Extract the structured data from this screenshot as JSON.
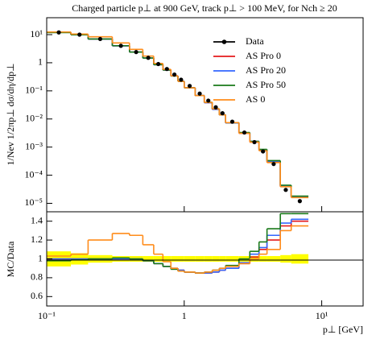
{
  "chart_data": {
    "type": "histogram",
    "title": "Charged particle p⊥ at 900 GeV, track p⊥ > 100 MeV, for Nch ≥ 20",
    "y_label": "1/Nev 1/2πp⊥ dσ/dη/dp⊥",
    "x_label": "p⊥ [GeV]",
    "ratio_label": "MC/Data",
    "xlog": true,
    "ylog": true,
    "xlim": [
      0.1,
      20
    ],
    "xticks": [
      {
        "value": 0.1,
        "label": "10⁻¹"
      },
      1,
      {
        "value": 10,
        "label": "10¹"
      }
    ],
    "ylim": [
      5e-06,
      40
    ],
    "yticks": [
      {
        "value": 10,
        "label": "10¹"
      },
      1,
      {
        "value": 0.1,
        "label": "10⁻¹"
      },
      {
        "value": 0.01,
        "label": "10⁻²"
      },
      {
        "value": 0.001,
        "label": "10⁻³"
      },
      {
        "value": 0.0001,
        "label": "10⁻⁴"
      },
      {
        "value": 1e-05,
        "label": "10⁻⁵"
      }
    ],
    "ratio_ylim": [
      0.5,
      1.5
    ],
    "ratio_yticks": [
      0.6,
      0.8,
      1,
      1.2,
      1.4
    ],
    "legend": "top-right",
    "bins": [
      0.1,
      0.15,
      0.2,
      0.3,
      0.4,
      0.5,
      0.6,
      0.7,
      0.8,
      0.9,
      1.0,
      1.2,
      1.4,
      1.6,
      1.8,
      2.0,
      2.5,
      3.0,
      3.5,
      4.0,
      5.0,
      6.0,
      8.0
    ],
    "data": {
      "name": "Data",
      "color": "#000000",
      "values": [
        12,
        10,
        7,
        4,
        2.4,
        1.5,
        0.9,
        0.6,
        0.38,
        0.25,
        0.15,
        0.08,
        0.045,
        0.026,
        0.016,
        0.008,
        0.0033,
        0.0015,
        0.0007,
        0.00025,
        3e-05,
        1.2e-05
      ]
    },
    "band_color": "#ffff00",
    "band_errors": [
      0.08,
      0.06,
      0.04,
      0.03,
      0.03,
      0.03,
      0.03,
      0.03,
      0.03,
      0.03,
      0.03,
      0.03,
      0.03,
      0.03,
      0.03,
      0.03,
      0.03,
      0.03,
      0.03,
      0.03,
      0.04,
      0.05
    ],
    "series": [
      {
        "name": "AS Pro 0",
        "color": "#e41a1c",
        "values": [
          12,
          10,
          7,
          4,
          2.4,
          1.47,
          0.855,
          0.552,
          0.342,
          0.22,
          0.129,
          0.068,
          0.038,
          0.022,
          0.014,
          0.0072,
          0.0031,
          0.0015,
          0.00077,
          0.0003,
          4e-05,
          1.7e-05
        ],
        "ratio": [
          1.0,
          1.0,
          1.0,
          1.0,
          1.0,
          0.98,
          0.95,
          0.92,
          0.9,
          0.88,
          0.86,
          0.85,
          0.85,
          0.86,
          0.88,
          0.9,
          0.95,
          1.02,
          1.1,
          1.2,
          1.35,
          1.4
        ]
      },
      {
        "name": "AS Pro 20",
        "color": "#3366ff",
        "values": [
          12,
          10,
          7,
          4,
          2.4,
          1.47,
          0.855,
          0.552,
          0.342,
          0.22,
          0.129,
          0.068,
          0.038,
          0.022,
          0.014,
          0.0072,
          0.0032,
          0.0016,
          0.00078,
          0.00031,
          4.1e-05,
          1.7e-05
        ],
        "ratio": [
          1.0,
          1.0,
          1.0,
          1.0,
          1.0,
          0.98,
          0.95,
          0.92,
          0.9,
          0.88,
          0.86,
          0.85,
          0.85,
          0.86,
          0.88,
          0.9,
          0.96,
          1.05,
          1.12,
          1.25,
          1.38,
          1.42
        ]
      },
      {
        "name": "AS Pro 50",
        "color": "#1a7a1a",
        "values": [
          11.8,
          9.9,
          7,
          4.04,
          2.4,
          1.47,
          0.855,
          0.552,
          0.338,
          0.218,
          0.129,
          0.068,
          0.039,
          0.023,
          0.014,
          0.0074,
          0.0033,
          0.0016,
          0.00083,
          0.00033,
          4.4e-05,
          1.8e-05
        ],
        "ratio": [
          0.98,
          0.99,
          1.0,
          1.01,
          1.0,
          0.98,
          0.95,
          0.92,
          0.89,
          0.87,
          0.86,
          0.85,
          0.86,
          0.88,
          0.9,
          0.93,
          1.0,
          1.08,
          1.18,
          1.32,
          1.48,
          1.48
        ]
      },
      {
        "name": "AS 0",
        "color": "#ff8c1a",
        "values": [
          12.4,
          10.5,
          8.4,
          5.08,
          3.0,
          1.73,
          0.945,
          0.582,
          0.342,
          0.218,
          0.129,
          0.068,
          0.039,
          0.023,
          0.014,
          0.0074,
          0.0031,
          0.0015,
          0.00074,
          0.00028,
          3.9e-05,
          1.6e-05
        ],
        "ratio": [
          1.03,
          1.05,
          1.2,
          1.27,
          1.25,
          1.15,
          1.05,
          0.97,
          0.9,
          0.87,
          0.86,
          0.85,
          0.86,
          0.88,
          0.9,
          0.92,
          0.95,
          1.0,
          1.05,
          1.1,
          1.3,
          1.35
        ]
      }
    ]
  }
}
